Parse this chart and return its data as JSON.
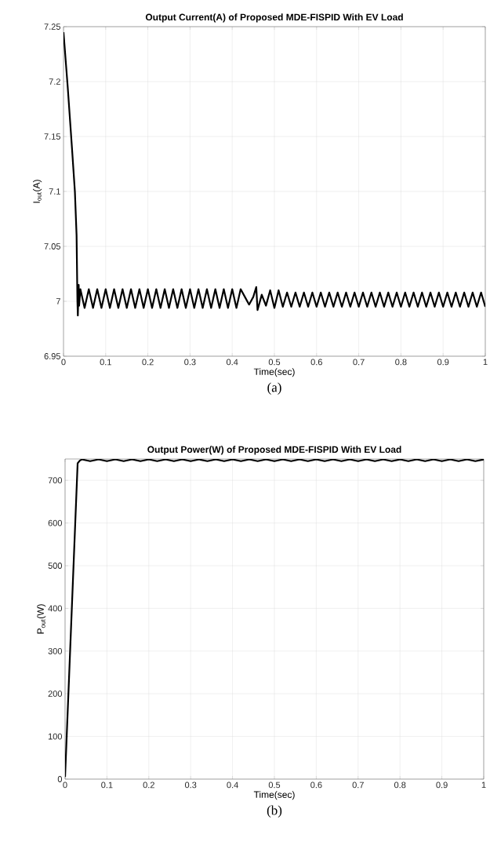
{
  "chart_data": [
    {
      "type": "line",
      "title": "Output Current(A) of Proposed MDE-FISPID With EV Load",
      "xlabel": "Time(sec)",
      "ylabel": "I$_{out}$(A)",
      "annotations": [
        "(a)"
      ],
      "xlim": [
        0,
        1
      ],
      "ylim": [
        6.95,
        7.25
      ],
      "xticks": [
        0,
        0.1,
        0.2,
        0.3,
        0.4,
        0.5,
        0.6,
        0.7,
        0.8,
        0.9,
        1
      ],
      "yticks": [
        6.95,
        7,
        7.05,
        7.1,
        7.15,
        7.2,
        7.25
      ],
      "grid": true,
      "series": [
        {
          "color": "#000000",
          "x": [
            0,
            0.01,
            0.02,
            0.027,
            0.031,
            0.033,
            0.034,
            0.036,
            0.037,
            0.04,
            0.05,
            0.06,
            0.07,
            0.08,
            0.09,
            0.1,
            0.11,
            0.12,
            0.13,
            0.14,
            0.15,
            0.16,
            0.17,
            0.18,
            0.19,
            0.2,
            0.21,
            0.22,
            0.23,
            0.24,
            0.25,
            0.26,
            0.27,
            0.28,
            0.29,
            0.3,
            0.31,
            0.32,
            0.33,
            0.34,
            0.35,
            0.36,
            0.37,
            0.38,
            0.39,
            0.4,
            0.41,
            0.42,
            0.43,
            0.44,
            0.45,
            0.457,
            0.46,
            0.47,
            0.48,
            0.49,
            0.5,
            0.51,
            0.52,
            0.53,
            0.54,
            0.55,
            0.56,
            0.57,
            0.58,
            0.59,
            0.6,
            0.61,
            0.62,
            0.63,
            0.64,
            0.65,
            0.66,
            0.67,
            0.68,
            0.69,
            0.7,
            0.71,
            0.72,
            0.73,
            0.74,
            0.75,
            0.76,
            0.77,
            0.78,
            0.79,
            0.8,
            0.81,
            0.82,
            0.83,
            0.84,
            0.85,
            0.86,
            0.87,
            0.88,
            0.89,
            0.9,
            0.91,
            0.92,
            0.93,
            0.94,
            0.95,
            0.96,
            0.97,
            0.98,
            0.99,
            1
          ],
          "values": [
            7.245,
            7.195,
            7.14,
            7.1,
            7.06,
            7.0,
            6.987,
            7.015,
            6.996,
            7.011,
            6.994,
            7.011,
            6.994,
            7.011,
            6.994,
            7.011,
            6.994,
            7.011,
            6.994,
            7.011,
            6.994,
            7.011,
            6.994,
            7.011,
            6.994,
            7.011,
            6.994,
            7.011,
            6.994,
            7.011,
            6.994,
            7.011,
            6.994,
            7.011,
            6.994,
            7.011,
            6.994,
            7.011,
            6.994,
            7.011,
            6.994,
            7.011,
            6.994,
            7.011,
            6.994,
            7.011,
            6.994,
            7.011,
            7.004,
            6.997,
            7.004,
            7.013,
            6.992,
            7.006,
            6.996,
            7.01,
            6.994,
            7.01,
            6.995,
            7.008,
            6.995,
            7.008,
            6.995,
            7.008,
            6.995,
            7.008,
            6.995,
            7.008,
            6.995,
            7.008,
            6.995,
            7.008,
            6.995,
            7.008,
            6.995,
            7.008,
            6.995,
            7.008,
            6.995,
            7.008,
            6.995,
            7.008,
            6.995,
            7.008,
            6.995,
            7.008,
            6.995,
            7.008,
            6.995,
            7.008,
            6.995,
            7.008,
            6.995,
            7.008,
            6.995,
            7.008,
            6.995,
            7.008,
            6.995,
            7.008,
            6.995,
            7.008,
            6.995,
            7.008,
            6.995,
            7.008,
            6.995
          ]
        }
      ]
    },
    {
      "type": "line",
      "title": "Output Power(W) of Proposed MDE-FISPID With EV Load",
      "xlabel": "Time(sec)",
      "ylabel": "P$_{out}$(W)",
      "annotations": [
        "(b)"
      ],
      "xlim": [
        0,
        1
      ],
      "ylim": [
        0,
        750
      ],
      "xticks": [
        0,
        0.1,
        0.2,
        0.3,
        0.4,
        0.5,
        0.6,
        0.7,
        0.8,
        0.9,
        1
      ],
      "yticks": [
        0,
        100,
        200,
        300,
        400,
        500,
        600,
        700
      ],
      "grid": true,
      "series": [
        {
          "color": "#000000",
          "x": [
            0,
            0.03,
            0.035,
            0.04,
            0.06,
            0.08,
            0.1,
            0.12,
            0.14,
            0.16,
            0.18,
            0.2,
            0.22,
            0.24,
            0.26,
            0.28,
            0.3,
            0.32,
            0.34,
            0.36,
            0.38,
            0.4,
            0.42,
            0.44,
            0.46,
            0.48,
            0.5,
            0.52,
            0.54,
            0.56,
            0.58,
            0.6,
            0.62,
            0.64,
            0.66,
            0.68,
            0.7,
            0.72,
            0.74,
            0.76,
            0.78,
            0.8,
            0.82,
            0.84,
            0.86,
            0.88,
            0.9,
            0.92,
            0.94,
            0.96,
            0.98,
            1
          ],
          "values": [
            5,
            740,
            746,
            749,
            745,
            749,
            745,
            749,
            745,
            749,
            745,
            749,
            745,
            749,
            745,
            749,
            745,
            749,
            745,
            749,
            745,
            749,
            745,
            749,
            745,
            749,
            745,
            749,
            745,
            749,
            745,
            749,
            745,
            749,
            745,
            749,
            745,
            749,
            745,
            749,
            745,
            749,
            745,
            749,
            745,
            749,
            745,
            749,
            745,
            749,
            745,
            749
          ]
        }
      ]
    }
  ]
}
